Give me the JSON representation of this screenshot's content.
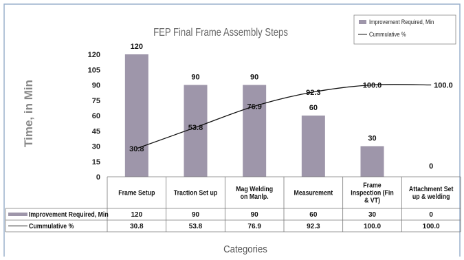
{
  "chart_data": {
    "type": "bar",
    "title": "FEP Final Frame Assembly Steps",
    "ylabel": "Time, in Min",
    "xlabel": "Categories",
    "ylim": [
      0,
      120
    ],
    "yticks": [
      "0",
      "15",
      "30",
      "45",
      "60",
      "75",
      "90",
      "105",
      "120"
    ],
    "categories": [
      [
        "Frame Setup"
      ],
      [
        "Traction Set up"
      ],
      [
        "Mag Welding",
        "on Manlp."
      ],
      [
        "Measurement"
      ],
      [
        "Frame",
        "Inspection (Fin",
        "& VT)"
      ],
      [
        "Attachment Set",
        "up & welding"
      ]
    ],
    "series": [
      {
        "name": "Improvement Required, Min",
        "type": "bar",
        "color": "#9e96aa",
        "values": [
          120,
          90,
          90,
          60,
          30,
          0
        ],
        "labels": [
          "120",
          "90",
          "90",
          "60",
          "30",
          "0"
        ]
      },
      {
        "name": "Cummulative %",
        "type": "line",
        "color": "#111111",
        "values": [
          30.8,
          53.8,
          76.9,
          92.3,
          100.0,
          100.0
        ],
        "labels": [
          "30.8",
          "53.8",
          "76.9",
          "92.3",
          "100.0",
          "100.0"
        ]
      }
    ],
    "legend": {
      "position": "top-right",
      "items": [
        "Improvement Required, Min",
        "Cummulative %"
      ]
    },
    "grid": false,
    "data_table": true
  }
}
